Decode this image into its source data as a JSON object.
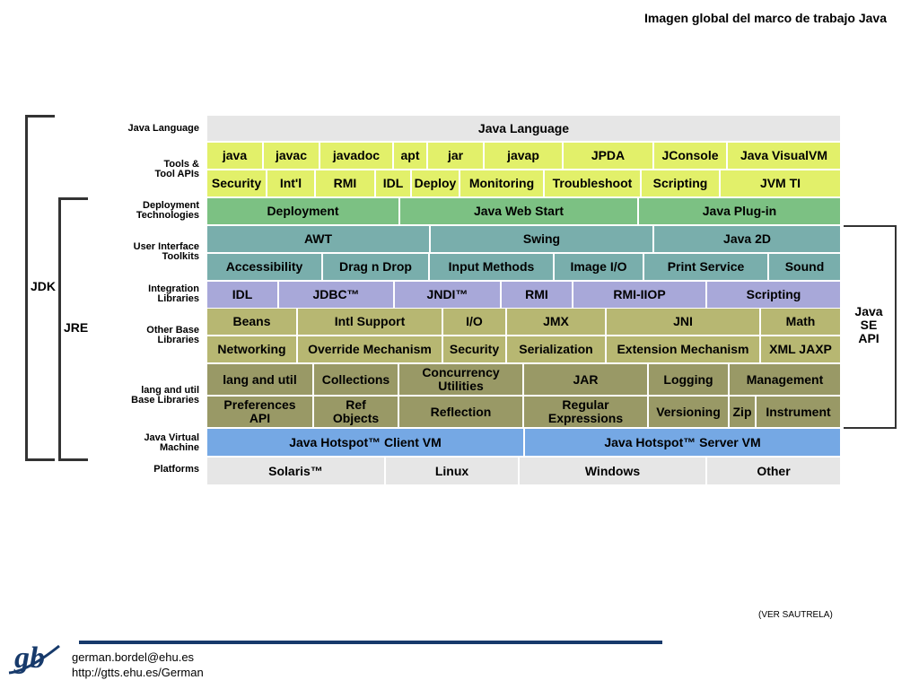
{
  "page_title": "Imagen global del marco de trabajo Java",
  "row_labels": [
    {
      "text": "Java Language"
    },
    {
      "text": "Tools &\nTool APIs"
    },
    {
      "text": "Deployment\nTechnologies"
    },
    {
      "text": "User Interface\nToolkits"
    },
    {
      "text": "Integration\nLibraries"
    },
    {
      "text": "Other Base\nLibraries"
    },
    {
      "text": "lang and util\nBase Libraries"
    },
    {
      "text": "Java Virtual\nMachine"
    },
    {
      "text": "Platforms"
    }
  ],
  "brackets": {
    "jdk": "JDK",
    "jre": "JRE",
    "java_se_api": "Java\nSE\nAPI"
  },
  "rows": [
    {
      "cls": "c-lang",
      "rows": 1,
      "cells": [
        [
          "Java Language",
          1
        ]
      ]
    },
    {
      "cls": "c-tools",
      "rows": 1,
      "cells": [
        [
          "java",
          1
        ],
        [
          "javac",
          1
        ],
        [
          "javadoc",
          1.3
        ],
        [
          "apt",
          0.6
        ],
        [
          "jar",
          1
        ],
        [
          "javap",
          1.4
        ],
        [
          "JPDA",
          1.6
        ],
        [
          "JConsole",
          1.3
        ],
        [
          "Java VisualVM",
          2
        ]
      ]
    },
    {
      "cls": "c-tools",
      "rows": 1,
      "cells": [
        [
          "Security",
          1
        ],
        [
          "Int'l",
          0.8
        ],
        [
          "RMI",
          1
        ],
        [
          "IDL",
          0.6
        ],
        [
          "Deploy",
          0.8
        ],
        [
          "Monitoring",
          1.4
        ],
        [
          "Troubleshoot",
          1.6
        ],
        [
          "Scripting",
          1.3
        ],
        [
          "JVM TI",
          2
        ]
      ]
    },
    {
      "cls": "c-deploy",
      "rows": 1,
      "cells": [
        [
          "Deployment",
          2.1
        ],
        [
          "Java Web Start",
          2.6
        ],
        [
          "Java Plug-in",
          2.2
        ]
      ]
    },
    {
      "cls": "c-ui",
      "rows": 1,
      "cells": [
        [
          "AWT",
          2.5
        ],
        [
          "Swing",
          2.5
        ],
        [
          "Java 2D",
          2.1
        ]
      ]
    },
    {
      "cls": "c-ui",
      "rows": 1,
      "cells": [
        [
          "Accessibility",
          1.3
        ],
        [
          "Drag n Drop",
          1.2
        ],
        [
          "Input Methods",
          1.4
        ],
        [
          "Image I/O",
          1
        ],
        [
          "Print Service",
          1.4
        ],
        [
          "Sound",
          0.8
        ]
      ]
    },
    {
      "cls": "c-integ",
      "rows": 1,
      "cells": [
        [
          "IDL",
          0.8
        ],
        [
          "JDBC™",
          1.3
        ],
        [
          "JNDI™",
          1.2
        ],
        [
          "RMI",
          0.8
        ],
        [
          "RMI-IIOP",
          1.5
        ],
        [
          "Scripting",
          1.5
        ]
      ]
    },
    {
      "cls": "c-other",
      "rows": 1,
      "cells": [
        [
          "Beans",
          1
        ],
        [
          "Intl Support",
          1.6
        ],
        [
          "I/O",
          0.7
        ],
        [
          "JMX",
          1.1
        ],
        [
          "JNI",
          1.7
        ],
        [
          "Math",
          0.9
        ]
      ]
    },
    {
      "cls": "c-other",
      "rows": 1,
      "cells": [
        [
          "Networking",
          1
        ],
        [
          "Override Mechanism",
          1.6
        ],
        [
          "Security",
          0.7
        ],
        [
          "Serialization",
          1.1
        ],
        [
          "Extension Mechanism",
          1.7
        ],
        [
          "XML JAXP",
          0.9
        ]
      ]
    },
    {
      "cls": "c-util",
      "rows": 1,
      "cells": [
        [
          "lang and util",
          1.2
        ],
        [
          "Collections",
          0.95
        ],
        [
          "Concurrency\nUtilities",
          1.4
        ],
        [
          "JAR",
          1.4
        ],
        [
          "Logging",
          0.9
        ],
        [
          "Management",
          1.25
        ]
      ]
    },
    {
      "cls": "c-util",
      "rows": 1,
      "cells": [
        [
          "Preferences\nAPI",
          1.2
        ],
        [
          "Ref\nObjects",
          0.95
        ],
        [
          "Reflection",
          1.4
        ],
        [
          "Regular\nExpressions",
          1.4
        ],
        [
          "Versioning",
          0.9
        ],
        [
          "Zip",
          0.3
        ],
        [
          "Instrument",
          0.95
        ]
      ]
    },
    {
      "cls": "c-jvm",
      "rows": 1,
      "cells": [
        [
          "Java Hotspot™ Client VM",
          1
        ],
        [
          "Java Hotspot™ Server VM",
          1
        ]
      ]
    },
    {
      "cls": "c-plat",
      "rows": 1,
      "cells": [
        [
          "Solaris™",
          2
        ],
        [
          "Linux",
          1.5
        ],
        [
          "Windows",
          2.1
        ],
        [
          "Other",
          1.5
        ]
      ]
    }
  ],
  "footer": {
    "note": "(VER SAUTRELA)",
    "email": "german.bordel@ehu.es",
    "url": "http://gtts.ehu.es/German",
    "logo_text": "gb"
  },
  "colors": {
    "logo": "#173a6b"
  }
}
